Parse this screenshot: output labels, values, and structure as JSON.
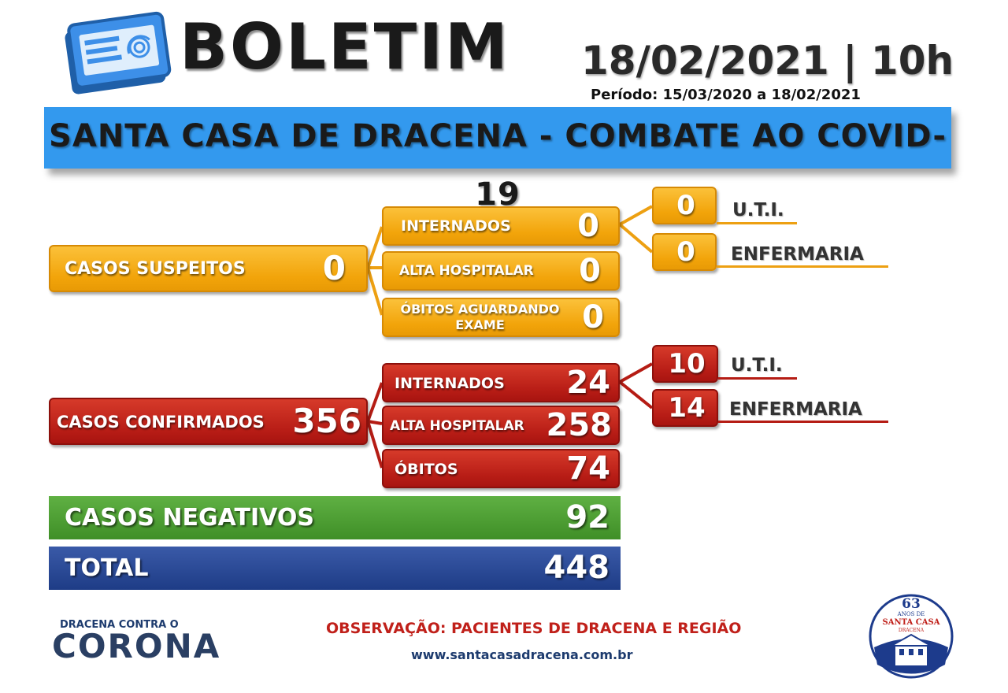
{
  "header": {
    "title": "BOLETIM",
    "datetime": "18/02/2021 | 10h",
    "period": "Período: 15/03/2020 a 18/02/2021",
    "banner": "SANTA CASA DE DRACENA - COMBATE AO COVID-19"
  },
  "suspeitos": {
    "label": "CASOS SUSPEITOS",
    "value": "0",
    "internados_label": "INTERNADOS",
    "internados_value": "0",
    "alta_label": "ALTA HOSPITALAR",
    "alta_value": "0",
    "obitos_label_1": "ÓBITOS AGUARDANDO",
    "obitos_label_2": "EXAME",
    "obitos_value": "0",
    "uti_value": "0",
    "uti_label": "U.T.I.",
    "enf_value": "0",
    "enf_label": "ENFERMARIA"
  },
  "confirmados": {
    "label": "CASOS CONFIRMADOS",
    "value": "356",
    "internados_label": "INTERNADOS",
    "internados_value": "24",
    "alta_label": "ALTA HOSPITALAR",
    "alta_value": "258",
    "obitos_label": "ÓBITOS",
    "obitos_value": "74",
    "uti_value": "10",
    "uti_label": "U.T.I.",
    "enf_value": "14",
    "enf_label": "ENFERMARIA"
  },
  "negativos": {
    "label": "CASOS NEGATIVOS",
    "value": "92"
  },
  "total": {
    "label": "TOTAL",
    "value": "448"
  },
  "footer": {
    "campaign_top": "DRACENA CONTRA O",
    "campaign_word": "CORONA",
    "observation": "OBSERVAÇÃO: PACIENTES DE DRACENA E REGIÃO",
    "website": "www.santacasadracena.com.br",
    "seal_number": "63",
    "seal_line1": "ANOS DE",
    "seal_line2": "SANTA CASA",
    "seal_line3": "DRACENA"
  },
  "colors": {
    "banner": "#3399ee",
    "suspeitos": "#f2a40a",
    "confirmados": "#b81d16",
    "negativos": "#3f8f27",
    "total": "#1e3c86"
  },
  "icons": [
    "document-icon",
    "fingerprint-icon"
  ]
}
